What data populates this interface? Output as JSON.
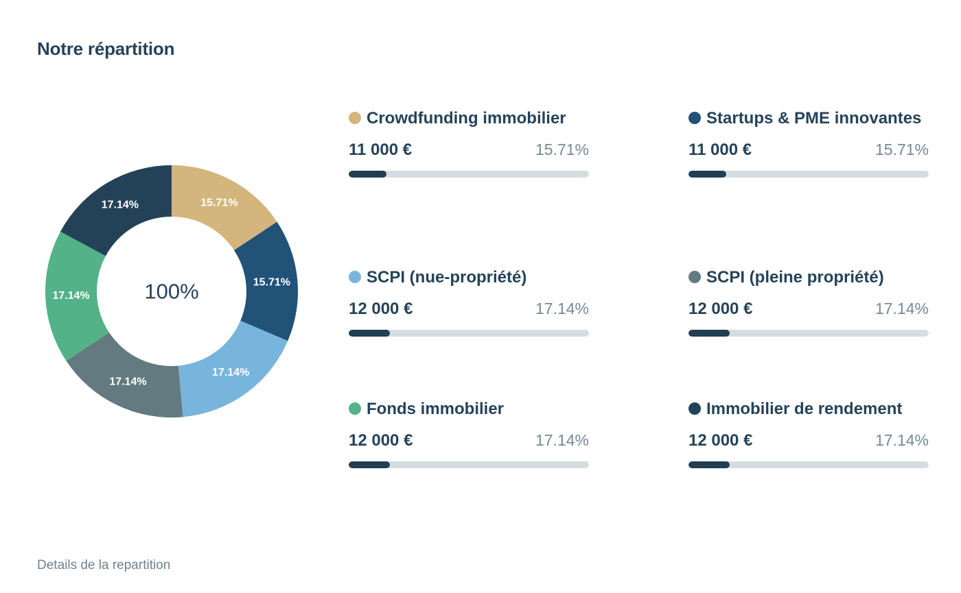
{
  "title": "Notre répartition",
  "footer": {
    "details_link": "Details de la repartition"
  },
  "chart_data": {
    "type": "pie",
    "variant": "donut",
    "center_label": "100%",
    "slices": [
      {
        "name": "Crowdfunding immobilier",
        "value": 15.71,
        "label": "15.71%",
        "color": "#d4b57d"
      },
      {
        "name": "Startups & PME innovantes",
        "value": 15.71,
        "label": "15.71%",
        "color": "#215277"
      },
      {
        "name": "SCPI (nue-propriété)",
        "value": 17.14,
        "label": "17.14%",
        "color": "#78b5dc"
      },
      {
        "name": "SCPI (pleine propriété)",
        "value": 17.14,
        "label": "17.14%",
        "color": "#627a80"
      },
      {
        "name": "Fonds immobilier",
        "value": 17.14,
        "label": "17.14%",
        "color": "#53b287"
      },
      {
        "name": "Immobilier de rendement",
        "value": 17.14,
        "label": "17.14%",
        "color": "#244257"
      }
    ]
  },
  "breakdown": [
    {
      "name": "Crowdfunding immobilier",
      "amount": "11 000 €",
      "percent": "15.71%",
      "progress": 0.157,
      "color": "#d4b57d"
    },
    {
      "name": "Startups & PME innovantes",
      "amount": "11 000 €",
      "percent": "15.71%",
      "progress": 0.157,
      "color": "#215277"
    },
    {
      "name": "SCPI (nue-propriété)",
      "amount": "12 000 €",
      "percent": "17.14%",
      "progress": 0.171,
      "color": "#78b5dc"
    },
    {
      "name": "SCPI (pleine propriété)",
      "amount": "12 000 €",
      "percent": "17.14%",
      "progress": 0.171,
      "color": "#627a80"
    },
    {
      "name": "Fonds immobilier",
      "amount": "12 000 €",
      "percent": "17.14%",
      "progress": 0.171,
      "color": "#53b287"
    },
    {
      "name": "Immobilier de rendement",
      "amount": "12 000 €",
      "percent": "17.14%",
      "progress": 0.171,
      "color": "#244257"
    }
  ]
}
